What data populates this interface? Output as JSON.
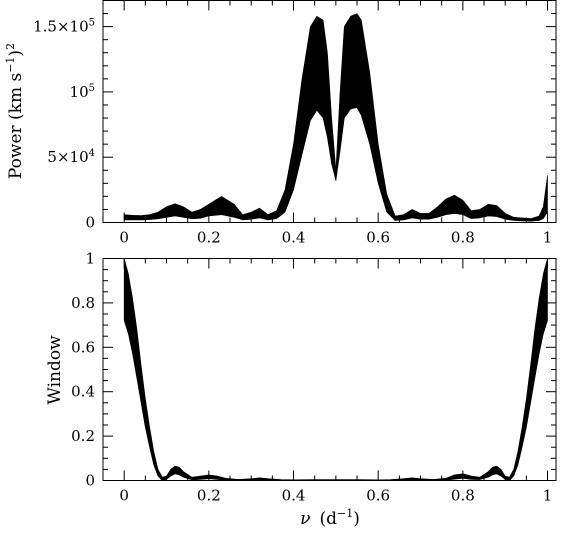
{
  "chart_data": [
    {
      "type": "area",
      "panel": "top",
      "xlabel": "",
      "ylabel": "Power (km s⁻¹)²",
      "ylabel_parts": {
        "main": "Power (km s",
        "sup1": "−1",
        "close": ")",
        "sup2": "2"
      },
      "xlim": [
        -0.05,
        1.02
      ],
      "ylim": [
        0,
        170000
      ],
      "xticks": [
        0,
        0.2,
        0.4,
        0.6,
        0.8,
        1
      ],
      "xtick_labels": [
        "0",
        "0.2",
        "0.4",
        "0.6",
        "0.8",
        "1"
      ],
      "yticks": [
        0,
        50000,
        100000,
        150000
      ],
      "ytick_labels": [
        {
          "mant": "0",
          "exp": ""
        },
        {
          "mant": "5×10",
          "exp": "4"
        },
        {
          "mant": "10",
          "exp": "5"
        },
        {
          "mant": "1.5×10",
          "exp": "5"
        }
      ],
      "grid": false,
      "series": [
        {
          "x": [
            0.0,
            0.02,
            0.04,
            0.06,
            0.08,
            0.1,
            0.12,
            0.14,
            0.16,
            0.18,
            0.2,
            0.23,
            0.26,
            0.28,
            0.3,
            0.32,
            0.34,
            0.36,
            0.38,
            0.4,
            0.42,
            0.44,
            0.455,
            0.47,
            0.48,
            0.49,
            0.5,
            0.51,
            0.52,
            0.535,
            0.55,
            0.56,
            0.58,
            0.6,
            0.62,
            0.64,
            0.66,
            0.68,
            0.7,
            0.72,
            0.74,
            0.76,
            0.78,
            0.8,
            0.82,
            0.84,
            0.86,
            0.88,
            0.9,
            0.92,
            0.94,
            0.96,
            0.98,
            0.99,
            1.0
          ],
          "upper": [
            6000,
            5500,
            5300,
            6000,
            8000,
            12000,
            14500,
            12000,
            8000,
            10000,
            14000,
            20000,
            14000,
            6000,
            8000,
            11000,
            6000,
            9000,
            25000,
            60000,
            110000,
            150000,
            158000,
            155000,
            130000,
            80000,
            40000,
            100000,
            150000,
            158000,
            160000,
            155000,
            115000,
            60000,
            22000,
            5000,
            6000,
            10000,
            7000,
            7000,
            12000,
            18000,
            21000,
            17000,
            9000,
            10000,
            14000,
            13000,
            7000,
            4000,
            3500,
            3000,
            5000,
            12000,
            36000
          ],
          "lower": [
            2000,
            2000,
            2000,
            2200,
            2800,
            4000,
            5000,
            4000,
            2800,
            3200,
            5000,
            6000,
            4000,
            2000,
            2500,
            3500,
            2000,
            3000,
            8000,
            25000,
            52000,
            78000,
            86000,
            80000,
            65000,
            45000,
            32000,
            55000,
            80000,
            87000,
            88000,
            82000,
            60000,
            30000,
            8000,
            1500,
            2000,
            3500,
            2500,
            2500,
            4000,
            6000,
            7000,
            6000,
            3000,
            3500,
            5000,
            4500,
            2500,
            1500,
            1200,
            1000,
            1500,
            3000,
            8000
          ]
        }
      ]
    },
    {
      "type": "area",
      "panel": "bottom",
      "xlabel": "ν (d⁻¹)",
      "xlabel_parts": {
        "nu": "ν",
        "open": "(d",
        "sup": "−1",
        "close": ")"
      },
      "ylabel": "Window",
      "xlim": [
        -0.05,
        1.02
      ],
      "ylim": [
        0,
        1
      ],
      "xticks": [
        0,
        0.2,
        0.4,
        0.6,
        0.8,
        1
      ],
      "xtick_labels": [
        "0",
        "0.2",
        "0.4",
        "0.6",
        "0.8",
        "1"
      ],
      "yticks": [
        0,
        0.2,
        0.4,
        0.6,
        0.8,
        1
      ],
      "ytick_labels": [
        "0",
        "0.2",
        "0.4",
        "0.6",
        "0.8",
        "1"
      ],
      "grid": false,
      "series": [
        {
          "x": [
            0.0,
            0.01,
            0.02,
            0.03,
            0.04,
            0.05,
            0.06,
            0.07,
            0.08,
            0.09,
            0.1,
            0.11,
            0.12,
            0.13,
            0.14,
            0.16,
            0.18,
            0.2,
            0.22,
            0.24,
            0.27,
            0.3,
            0.32,
            0.34,
            0.37,
            0.4,
            0.45,
            0.5,
            0.55,
            0.6,
            0.63,
            0.66,
            0.68,
            0.7,
            0.73,
            0.76,
            0.78,
            0.8,
            0.82,
            0.84,
            0.86,
            0.87,
            0.88,
            0.89,
            0.9,
            0.91,
            0.92,
            0.93,
            0.94,
            0.95,
            0.96,
            0.97,
            0.98,
            0.99,
            1.0
          ],
          "upper": [
            1.0,
            0.93,
            0.82,
            0.68,
            0.52,
            0.37,
            0.24,
            0.13,
            0.05,
            0.015,
            0.02,
            0.05,
            0.065,
            0.06,
            0.04,
            0.015,
            0.02,
            0.025,
            0.02,
            0.01,
            0.005,
            0.008,
            0.012,
            0.008,
            0.004,
            0.003,
            0.004,
            0.004,
            0.004,
            0.003,
            0.004,
            0.008,
            0.012,
            0.008,
            0.005,
            0.01,
            0.025,
            0.03,
            0.02,
            0.015,
            0.04,
            0.06,
            0.065,
            0.05,
            0.02,
            0.015,
            0.05,
            0.13,
            0.24,
            0.37,
            0.52,
            0.68,
            0.82,
            0.93,
            1.0
          ],
          "lower": [
            0.72,
            0.66,
            0.57,
            0.46,
            0.35,
            0.24,
            0.15,
            0.07,
            0.02,
            0.0,
            0.005,
            0.02,
            0.03,
            0.025,
            0.015,
            0.003,
            0.005,
            0.008,
            0.005,
            0.002,
            0.0,
            0.001,
            0.003,
            0.001,
            0.0,
            0.0,
            0.0,
            0.0,
            0.0,
            0.0,
            0.0,
            0.001,
            0.003,
            0.001,
            0.0,
            0.002,
            0.006,
            0.01,
            0.005,
            0.004,
            0.015,
            0.025,
            0.03,
            0.02,
            0.005,
            0.0,
            0.02,
            0.07,
            0.15,
            0.24,
            0.35,
            0.46,
            0.57,
            0.66,
            0.72
          ]
        }
      ]
    }
  ]
}
